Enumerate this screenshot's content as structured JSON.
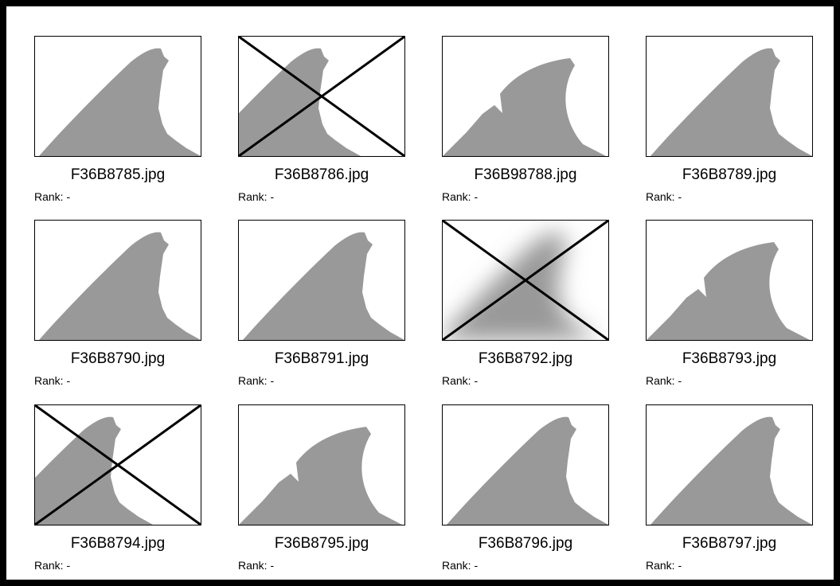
{
  "items": [
    {
      "filename": "F36B8785.jpg",
      "rank": "Rank: -"
    },
    {
      "filename": "F36B8786.jpg",
      "rank": "Rank: -"
    },
    {
      "filename": "F36B98788.jpg",
      "rank": "Rank: -"
    },
    {
      "filename": "F36B8789.jpg",
      "rank": "Rank: -"
    },
    {
      "filename": "F36B8790.jpg",
      "rank": "Rank: -"
    },
    {
      "filename": "F36B8791.jpg",
      "rank": "Rank: -"
    },
    {
      "filename": "F36B8792.jpg",
      "rank": "Rank: -"
    },
    {
      "filename": "F36B8793.jpg",
      "rank": "Rank: -"
    },
    {
      "filename": "F36B8794.jpg",
      "rank": "Rank: -"
    },
    {
      "filename": "F36B8795.jpg",
      "rank": "Rank: -"
    },
    {
      "filename": "F36B8796.jpg",
      "rank": "Rank: -"
    },
    {
      "filename": "F36B8797.jpg",
      "rank": "Rank: -"
    }
  ]
}
